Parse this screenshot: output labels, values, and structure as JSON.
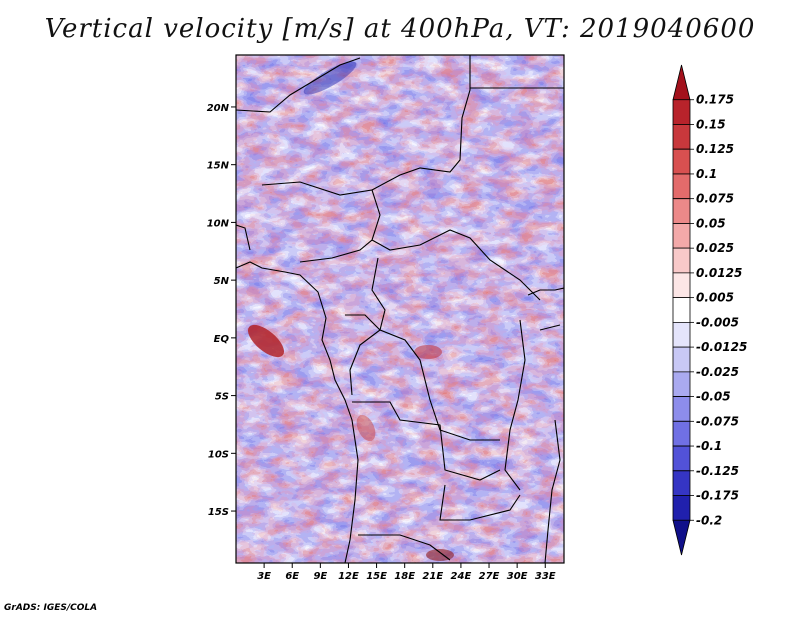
{
  "title": "Vertical velocity [m/s] at 400hPa, VT: 2019040600",
  "credit": "GrADS: IGES/COLA",
  "map": {
    "lat_range": [
      -19.5,
      24.5
    ],
    "lon_range": [
      0,
      35
    ],
    "lat_ticks": [
      {
        "value": 20,
        "label": "20N"
      },
      {
        "value": 15,
        "label": "15N"
      },
      {
        "value": 10,
        "label": "10N"
      },
      {
        "value": 5,
        "label": "5N"
      },
      {
        "value": 0,
        "label": "EQ"
      },
      {
        "value": -5,
        "label": "5S"
      },
      {
        "value": -10,
        "label": "10S"
      },
      {
        "value": -15,
        "label": "15S"
      }
    ],
    "lon_ticks": [
      {
        "value": 3,
        "label": "3E"
      },
      {
        "value": 6,
        "label": "6E"
      },
      {
        "value": 9,
        "label": "9E"
      },
      {
        "value": 12,
        "label": "12E"
      },
      {
        "value": 15,
        "label": "15E"
      },
      {
        "value": 18,
        "label": "18E"
      },
      {
        "value": 21,
        "label": "21E"
      },
      {
        "value": 24,
        "label": "24E"
      },
      {
        "value": 27,
        "label": "27E"
      },
      {
        "value": 30,
        "label": "30E"
      },
      {
        "value": 33,
        "label": "33E"
      }
    ]
  },
  "colorbar": {
    "labels": [
      "0.175",
      "0.15",
      "0.125",
      "0.1",
      "0.075",
      "0.05",
      "0.025",
      "0.0125",
      "0.005",
      "-0.005",
      "-0.0125",
      "-0.025",
      "-0.05",
      "-0.075",
      "-0.1",
      "-0.125",
      "-0.175",
      "-0.2"
    ],
    "colors": [
      "#a3111c",
      "#b8232b",
      "#c8383c",
      "#d85050",
      "#e36b6b",
      "#ec8989",
      "#f3a9a9",
      "#f8c9c9",
      "#fce6e6",
      "#ffffff",
      "#e4e4fb",
      "#c8c8f5",
      "#aaaaf0",
      "#8d8deb",
      "#7070e4",
      "#5252d8",
      "#3535c4",
      "#2020ad",
      "#10108a"
    ]
  }
}
